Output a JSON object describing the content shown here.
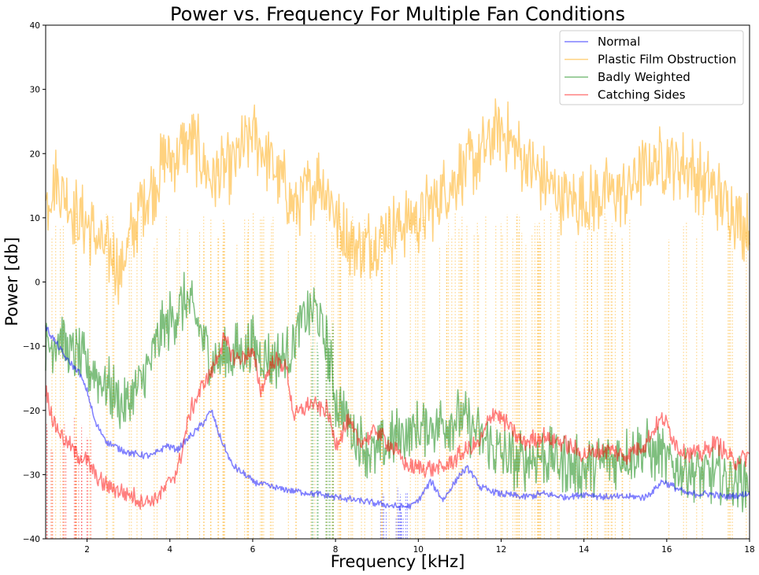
{
  "chart_data": {
    "type": "line",
    "title": "Power vs. Frequency For Multiple Fan Conditions",
    "xlabel": "Frequency [kHz]",
    "ylabel": "Power [db]",
    "xlim": [
      1,
      18
    ],
    "ylim": [
      -40,
      40
    ],
    "xticks": [
      2,
      4,
      6,
      8,
      10,
      12,
      14,
      16,
      18
    ],
    "yticks": [
      -40,
      -30,
      -20,
      -10,
      0,
      10,
      20,
      30,
      40
    ],
    "grid": false,
    "legend_position": "upper right",
    "legend": [
      "Normal",
      "Plastic Film Obstruction",
      "Badly Weighted",
      "Catching Sides"
    ],
    "series": [
      {
        "name": "Normal",
        "color": "#0000ff",
        "alpha": 0.5,
        "noise": 0.6,
        "x": [
          1.0,
          1.2,
          1.5,
          1.8,
          2.0,
          2.2,
          2.5,
          2.8,
          3.0,
          3.3,
          3.6,
          3.9,
          4.2,
          4.5,
          4.8,
          5.0,
          5.2,
          5.5,
          6.0,
          6.5,
          7.0,
          7.5,
          8.0,
          8.5,
          9.0,
          9.5,
          9.8,
          10.0,
          10.3,
          10.6,
          11.0,
          11.2,
          11.5,
          12.0,
          12.5,
          13.0,
          13.5,
          14.0,
          14.5,
          15.0,
          15.5,
          15.9,
          16.2,
          16.5,
          17.0,
          17.5,
          18.0
        ],
        "y": [
          -7,
          -9,
          -12,
          -14,
          -17,
          -22,
          -25,
          -26,
          -26.5,
          -27,
          -27,
          -25.5,
          -26,
          -24,
          -22,
          -20,
          -24,
          -28.5,
          -31,
          -32,
          -32.5,
          -33,
          -33.5,
          -34,
          -34.5,
          -35,
          -35,
          -34,
          -31,
          -34,
          -30,
          -29,
          -32,
          -33,
          -33.5,
          -33,
          -33.5,
          -33,
          -33.5,
          -33.5,
          -33.5,
          -31,
          -32,
          -33,
          -33,
          -33.5,
          -33
        ]
      },
      {
        "name": "Plastic Film Obstruction",
        "color": "#ffa500",
        "alpha": 0.5,
        "noise": 6,
        "x": [
          1.0,
          1.2,
          1.5,
          1.8,
          2.0,
          2.3,
          2.6,
          2.8,
          3.0,
          3.3,
          3.6,
          3.9,
          4.2,
          4.5,
          4.8,
          5.0,
          5.3,
          5.6,
          6.0,
          6.3,
          6.6,
          7.0,
          7.3,
          7.6,
          7.9,
          8.1,
          8.4,
          8.6,
          9.0,
          9.5,
          10.0,
          10.5,
          11.0,
          11.5,
          12.0,
          12.3,
          12.7,
          13.0,
          13.5,
          14.0,
          14.5,
          15.0,
          15.5,
          16.0,
          16.5,
          17.0,
          17.5,
          18.0
        ],
        "y": [
          12,
          16,
          13,
          10,
          9,
          6,
          4,
          2,
          6,
          12,
          15,
          19,
          20,
          22,
          19,
          16,
          17,
          19,
          23,
          20,
          17,
          12,
          14,
          16,
          13,
          8,
          6,
          5,
          7,
          9,
          10,
          13,
          17,
          20,
          24,
          21,
          18,
          16,
          13,
          12,
          14,
          14,
          18,
          19,
          18,
          15,
          12,
          8
        ]
      },
      {
        "name": "Badly Weighted",
        "color": "#008000",
        "alpha": 0.5,
        "noise": 5,
        "x": [
          1.0,
          1.3,
          1.6,
          2.0,
          2.3,
          2.6,
          2.9,
          3.2,
          3.5,
          3.8,
          4.1,
          4.4,
          4.7,
          5.0,
          5.3,
          5.6,
          6.0,
          6.4,
          6.8,
          7.2,
          7.5,
          7.8,
          8.0,
          8.3,
          8.6,
          9.0,
          9.5,
          10.0,
          10.5,
          11.0,
          11.5,
          12.0,
          12.5,
          13.0,
          13.5,
          14.0,
          14.5,
          15.0,
          15.5,
          16.0,
          16.5,
          17.0,
          17.5,
          18.0
        ],
        "y": [
          -11,
          -8,
          -11,
          -13,
          -15,
          -17,
          -20,
          -17,
          -13,
          -8,
          -5,
          -3,
          -7,
          -12,
          -12,
          -11,
          -10,
          -12,
          -12,
          -6,
          -4,
          -10,
          -18,
          -22,
          -25,
          -27,
          -24,
          -23,
          -22,
          -21,
          -24,
          -27,
          -28,
          -27,
          -28,
          -29,
          -28,
          -27,
          -26,
          -28,
          -29,
          -30,
          -30.5,
          -31
        ]
      },
      {
        "name": "Catching Sides",
        "color": "#ff0000",
        "alpha": 0.5,
        "noise": 1.6,
        "x": [
          1.0,
          1.2,
          1.5,
          1.8,
          2.0,
          2.3,
          2.6,
          3.0,
          3.3,
          3.6,
          3.9,
          4.2,
          4.5,
          4.8,
          5.0,
          5.3,
          5.6,
          6.0,
          6.2,
          6.5,
          6.8,
          7.0,
          7.4,
          7.8,
          8.0,
          8.3,
          8.6,
          9.0,
          9.4,
          9.8,
          10.2,
          10.6,
          11.0,
          11.5,
          11.8,
          12.0,
          12.5,
          13.0,
          13.5,
          14.0,
          14.5,
          15.0,
          15.5,
          15.9,
          16.3,
          16.8,
          17.2,
          17.6,
          18.0
        ],
        "y": [
          -17,
          -22,
          -25,
          -27,
          -28,
          -31,
          -32,
          -33,
          -34,
          -34,
          -32,
          -29,
          -20,
          -16,
          -14,
          -9,
          -12,
          -11,
          -17,
          -12,
          -13,
          -21,
          -19,
          -20,
          -25,
          -22,
          -25,
          -23,
          -26,
          -29,
          -29,
          -29,
          -27,
          -25,
          -20,
          -21,
          -25,
          -24,
          -25,
          -27,
          -26,
          -27,
          -25,
          -21,
          -26,
          -27,
          -25,
          -28,
          -27
        ]
      }
    ],
    "dotted_verticals": [
      {
        "series": "Normal",
        "color": "#0000ff",
        "x_range": [
          9.0,
          9.8
        ],
        "count": 14,
        "from": -40,
        "to": -35
      },
      {
        "series": "Plastic Film Obstruction",
        "color": "#ffa500",
        "x_range": [
          1.0,
          18.0
        ],
        "count": 140,
        "from": -40,
        "to": 8
      },
      {
        "series": "Badly Weighted",
        "color": "#008000",
        "x_range": [
          7.4,
          7.95
        ],
        "count": 10,
        "from": -40,
        "to": -8
      },
      {
        "series": "Catching Sides",
        "color": "#ff0000",
        "x_range": [
          1.0,
          2.1
        ],
        "count": 16,
        "from": -40,
        "to": -24
      }
    ]
  }
}
